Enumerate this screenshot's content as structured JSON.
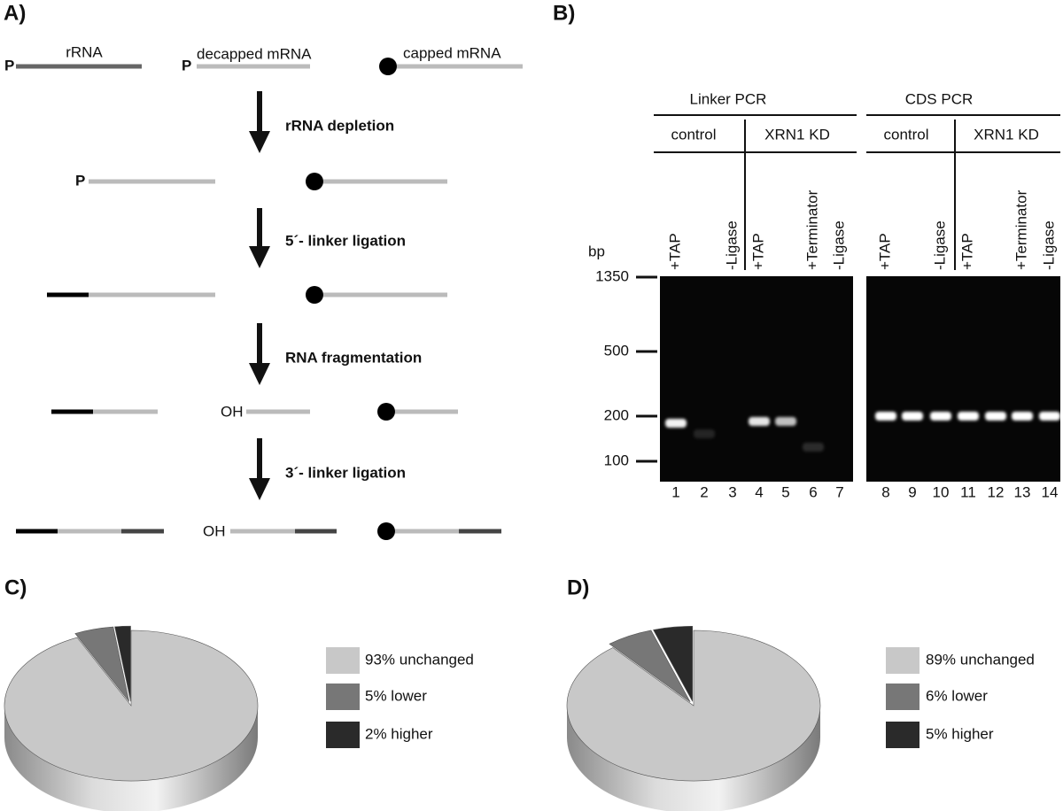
{
  "panel_a": {
    "label": "A)",
    "molecules": [
      "rRNA",
      "decapped mRNA",
      "capped mRNA"
    ],
    "phosphate": [
      "P",
      "P",
      "P"
    ],
    "hydroxyl": [
      "OH",
      "OH"
    ],
    "steps": [
      "rRNA depletion",
      "5´- linker ligation",
      "RNA fragmentation",
      "3´- linker ligation"
    ]
  },
  "panel_b": {
    "label": "B)",
    "groups": [
      "Linker PCR",
      "CDS PCR"
    ],
    "conditions": [
      "control",
      "XRN1 KD",
      "control",
      "XRN1 KD"
    ],
    "size_unit": "bp",
    "ladder": [
      1350,
      500,
      200,
      100
    ],
    "lanes": [
      1,
      2,
      3,
      4,
      5,
      6,
      7,
      8,
      9,
      10,
      11,
      12,
      13,
      14
    ],
    "lane_labels": [
      {
        "lane": 1,
        "label": "+TAP"
      },
      {
        "lane": 3,
        "label": "-Ligase"
      },
      {
        "lane": 4,
        "label": "+TAP"
      },
      {
        "lane": 6,
        "label": "+Terminator"
      },
      {
        "lane": 7,
        "label": "-Ligase"
      },
      {
        "lane": 8,
        "label": "+TAP"
      },
      {
        "lane": 10,
        "label": "-Ligase"
      },
      {
        "lane": 11,
        "label": "+TAP"
      },
      {
        "lane": 13,
        "label": "+Terminator"
      },
      {
        "lane": 14,
        "label": "-Ligase"
      }
    ]
  },
  "chart_data": [
    {
      "type": "pie",
      "title": "C)",
      "labels": [
        "93% unchanged",
        "5% lower",
        "2% higher"
      ],
      "values": [
        93,
        5,
        2
      ],
      "colors": [
        "#c8c8c8",
        "#777777",
        "#2a2a2a"
      ]
    },
    {
      "type": "pie",
      "title": "D)",
      "labels": [
        "89% unchanged",
        "6% lower",
        "5% higher"
      ],
      "values": [
        89,
        6,
        5
      ],
      "colors": [
        "#c8c8c8",
        "#777777",
        "#2a2a2a"
      ]
    }
  ]
}
